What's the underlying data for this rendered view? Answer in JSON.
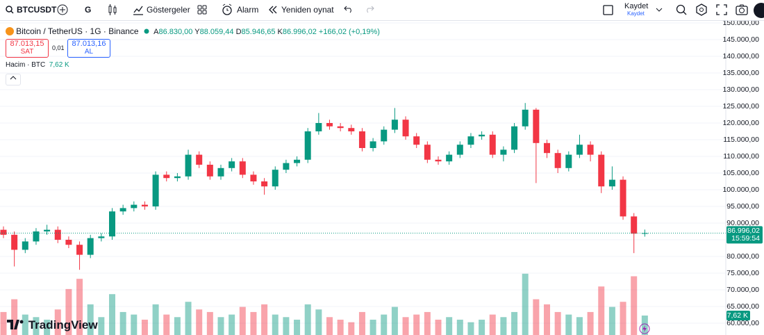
{
  "toolbar": {
    "symbol": "BTCUSDT",
    "interval": "G",
    "indicators": "Göstergeler",
    "alert": "Alarm",
    "replay": "Yeniden oynat",
    "save": "Kaydet",
    "save_sub": "Kaydet"
  },
  "legend": {
    "title": "Bitcoin / TetherUS · 1G · Binance",
    "o_label": "A",
    "o": "86.830,00",
    "h_label": "Y",
    "h": "88.059,44",
    "l_label": "D",
    "l": "85.946,65",
    "c_label": "K",
    "c": "86.996,02",
    "change": "+166,02 (+0,19%)"
  },
  "trade": {
    "sell_price": "87.013,15",
    "sell": "SAT",
    "spread": "0,01",
    "buy_price": "87.013,16",
    "buy": "AL"
  },
  "volume_legend": {
    "label": "Hacim · BTC",
    "value": "7,62 K"
  },
  "brand": "TradingView",
  "chart_data": {
    "type": "candlestick",
    "up_color": "#089981",
    "down_color": "#f23645",
    "grid": true,
    "open": [
      88000,
      86500,
      82000,
      84500,
      87500,
      88000,
      85000,
      83500,
      80500,
      85500,
      86000,
      93500,
      94500,
      95500,
      95000,
      104500,
      103500,
      104000,
      110500,
      107500,
      104000,
      106500,
      108500,
      104500,
      102500,
      101000,
      106000,
      108000,
      109000,
      117500,
      120000,
      119000,
      118500,
      117500,
      112500,
      114500,
      118000,
      121000,
      116000,
      113500,
      109000,
      108500,
      110500,
      113500,
      116000,
      116500,
      110500,
      112000,
      119000,
      124000,
      114000,
      111000,
      106500,
      110500,
      113500,
      110500,
      101000,
      103000,
      92000,
      86830
    ],
    "high": [
      89000,
      87500,
      85500,
      88500,
      89500,
      89000,
      86000,
      84500,
      86500,
      87000,
      94500,
      95500,
      96500,
      96500,
      105500,
      105500,
      105000,
      112000,
      111500,
      108500,
      107500,
      109500,
      109500,
      105500,
      103500,
      107000,
      109000,
      110000,
      118500,
      123000,
      121000,
      120000,
      119500,
      118500,
      115500,
      119000,
      124500,
      122000,
      117000,
      114500,
      110000,
      111500,
      114500,
      117000,
      117500,
      117500,
      113000,
      120000,
      126000,
      124500,
      115000,
      112000,
      111500,
      116500,
      114500,
      111500,
      107000,
      104000,
      93000,
      88059.44
    ],
    "low": [
      85500,
      77000,
      81000,
      83500,
      86500,
      84000,
      82500,
      76000,
      79500,
      84500,
      85000,
      92500,
      93500,
      94000,
      94000,
      102500,
      102500,
      103000,
      106500,
      103000,
      103000,
      105500,
      103500,
      101500,
      98500,
      100000,
      105000,
      107000,
      108000,
      116500,
      118000,
      117500,
      116500,
      111500,
      111500,
      113500,
      117000,
      115000,
      112500,
      108000,
      107500,
      107500,
      109500,
      112500,
      115000,
      109500,
      108500,
      111000,
      118000,
      102000,
      109500,
      105000,
      105500,
      109500,
      108500,
      99000,
      100000,
      91000,
      81000,
      85946.65
    ],
    "close": [
      86500,
      82000,
      84500,
      87500,
      88000,
      85000,
      83500,
      80500,
      85500,
      86000,
      93500,
      94500,
      95500,
      95000,
      104500,
      103500,
      104000,
      110500,
      107500,
      104000,
      106500,
      108500,
      104500,
      102500,
      101000,
      106000,
      108000,
      109000,
      117500,
      120000,
      119000,
      118500,
      117500,
      112500,
      114500,
      118000,
      121000,
      116000,
      113500,
      109000,
      108500,
      110500,
      113500,
      116000,
      116500,
      110500,
      112000,
      119000,
      124000,
      114000,
      111000,
      106500,
      110500,
      113500,
      110500,
      101000,
      103000,
      92000,
      86830,
      86996.02
    ],
    "volume": [
      9,
      14,
      8,
      7,
      6,
      10,
      18,
      22,
      12,
      7,
      16,
      9,
      8,
      6,
      12,
      8,
      7,
      13,
      10,
      9,
      7,
      8,
      11,
      9,
      12,
      8,
      7,
      6,
      12,
      10,
      7,
      6,
      5,
      9,
      6,
      8,
      11,
      7,
      8,
      9,
      6,
      7,
      6,
      5,
      6,
      8,
      7,
      9,
      24,
      14,
      12,
      9,
      8,
      7,
      9,
      19,
      11,
      13,
      23,
      7.62
    ],
    "ylim": [
      56458,
      150625
    ],
    "volume_ylim": [
      0,
      123
    ],
    "yticks": [
      {
        "value": 60000,
        "label": "60.000,00"
      },
      {
        "value": 65000,
        "label": "65.000,00"
      },
      {
        "value": 70000,
        "label": "70.000,00"
      },
      {
        "value": 75000,
        "label": "75.000,00"
      },
      {
        "value": 80000,
        "label": "80.000,00"
      },
      {
        "value": 85000,
        "label": "85.000,00"
      },
      {
        "value": 90000,
        "label": "90.000,00"
      },
      {
        "value": 95000,
        "label": "95.000,00"
      },
      {
        "value": 100000,
        "label": "100.000,00"
      },
      {
        "value": 105000,
        "label": "105.000,00"
      },
      {
        "value": 110000,
        "label": "110.000,00"
      },
      {
        "value": 115000,
        "label": "115.000,00"
      },
      {
        "value": 120000,
        "label": "120.000,00"
      },
      {
        "value": 125000,
        "label": "125.000,00"
      },
      {
        "value": 130000,
        "label": "130.000,00"
      },
      {
        "value": 135000,
        "label": "135.000,00"
      },
      {
        "value": 140000,
        "label": "140.000,00"
      },
      {
        "value": 145000,
        "label": "145.000,00"
      },
      {
        "value": 150000,
        "label": "150.000,00"
      }
    ],
    "last_price_label": "86.996,02",
    "countdown": "15:59:54",
    "last_volume_label": "7,62 K"
  }
}
